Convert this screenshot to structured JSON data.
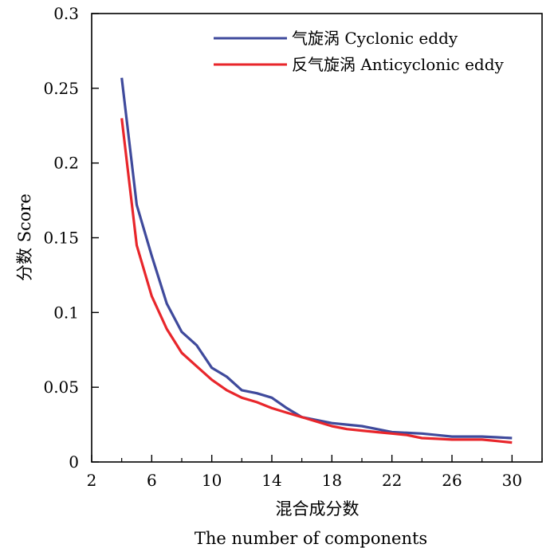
{
  "chart_data": {
    "type": "line",
    "title": "",
    "xlabel_cn": "混合成分数",
    "xlabel_en": "The number of components",
    "ylabel": "分数 Score",
    "xlim": [
      2,
      32
    ],
    "ylim": [
      0,
      0.3
    ],
    "xticks": [
      2,
      6,
      10,
      14,
      18,
      22,
      26,
      30
    ],
    "xminor": [
      4,
      8,
      12,
      16,
      20,
      24,
      28,
      32
    ],
    "yticks": [
      0,
      0.05,
      0.1,
      0.15,
      0.2,
      0.25,
      0.3
    ],
    "ytick_labels": [
      "0",
      "0.05",
      "0.1",
      "0.15",
      "0.2",
      "0.25",
      "0.3"
    ],
    "grid": false,
    "legend_position": "top-right",
    "series": [
      {
        "name": "气旋涡 Cyclonic eddy",
        "color": "#3f4a9c",
        "x": [
          4,
          5,
          6,
          7,
          8,
          9,
          10,
          11,
          12,
          13,
          14,
          15,
          16,
          17,
          18,
          19,
          20,
          21,
          22,
          23,
          24,
          25,
          26,
          27,
          28,
          29,
          30
        ],
        "values": [
          0.257,
          0.172,
          0.138,
          0.106,
          0.087,
          0.078,
          0.063,
          0.057,
          0.048,
          0.046,
          0.043,
          0.036,
          0.03,
          0.028,
          0.026,
          0.025,
          0.024,
          0.022,
          0.02,
          0.0195,
          0.019,
          0.018,
          0.017,
          0.017,
          0.017,
          0.0165,
          0.016
        ]
      },
      {
        "name": "反气旋涡 Anticyclonic eddy",
        "color": "#e8262b",
        "x": [
          4,
          5,
          6,
          7,
          8,
          9,
          10,
          11,
          12,
          13,
          14,
          15,
          16,
          17,
          18,
          19,
          20,
          21,
          22,
          23,
          24,
          25,
          26,
          27,
          28,
          29,
          30
        ],
        "values": [
          0.23,
          0.145,
          0.111,
          0.089,
          0.073,
          0.064,
          0.055,
          0.048,
          0.043,
          0.04,
          0.036,
          0.033,
          0.03,
          0.027,
          0.024,
          0.022,
          0.021,
          0.02,
          0.019,
          0.018,
          0.016,
          0.0155,
          0.015,
          0.015,
          0.015,
          0.014,
          0.013
        ]
      }
    ]
  }
}
